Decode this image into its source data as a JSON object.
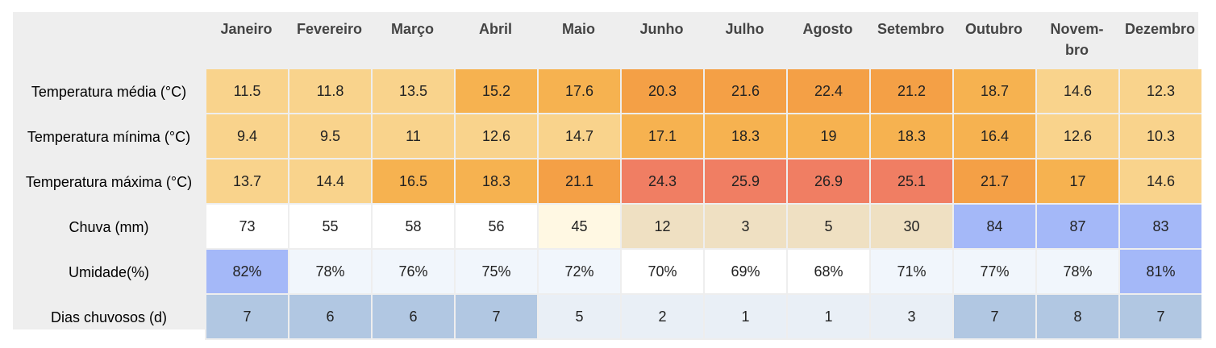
{
  "months": [
    "Janeiro",
    "Fevereiro",
    "Março",
    "Abril",
    "Maio",
    "Junho",
    "Julho",
    "Agosto",
    "Setembro",
    "Outubro",
    "Novem-\nbro",
    "Dezembro"
  ],
  "rows": [
    {
      "label": "Temperatura média (°C)",
      "values": [
        "11.5",
        "11.8",
        "13.5",
        "15.2",
        "17.6",
        "20.3",
        "21.6",
        "22.4",
        "21.2",
        "18.7",
        "14.6",
        "12.3"
      ],
      "colors": [
        "#f9d38c",
        "#f9d38c",
        "#f9d38c",
        "#f6b250",
        "#f6b250",
        "#f4a046",
        "#f4a046",
        "#f4a046",
        "#f4a046",
        "#f6b250",
        "#f9d38c",
        "#f9d38c"
      ]
    },
    {
      "label": "Temperatura mínima (°C)",
      "values": [
        "9.4",
        "9.5",
        "11",
        "12.6",
        "14.7",
        "17.1",
        "18.3",
        "19",
        "18.3",
        "16.4",
        "12.6",
        "10.3"
      ],
      "colors": [
        "#f9d38c",
        "#f9d38c",
        "#f9d38c",
        "#f9d38c",
        "#f9d38c",
        "#f6b250",
        "#f6b250",
        "#f6b250",
        "#f6b250",
        "#f6b250",
        "#f9d38c",
        "#f9d38c"
      ]
    },
    {
      "label": "Temperatura máxima (°C)",
      "values": [
        "13.7",
        "14.4",
        "16.5",
        "18.3",
        "21.1",
        "24.3",
        "25.9",
        "26.9",
        "25.1",
        "21.7",
        "17",
        "14.6"
      ],
      "colors": [
        "#f9d38c",
        "#f9d38c",
        "#f6b250",
        "#f6b250",
        "#f4a046",
        "#f07e63",
        "#f07e63",
        "#f07e63",
        "#f07e63",
        "#f4a046",
        "#f6b250",
        "#f9d38c"
      ]
    },
    {
      "label": "Chuva (mm)",
      "values": [
        "73",
        "55",
        "58",
        "56",
        "45",
        "12",
        "3",
        "5",
        "30",
        "84",
        "87",
        "83"
      ],
      "colors": [
        "#ffffff",
        "#ffffff",
        "#ffffff",
        "#ffffff",
        "#fff8e3",
        "#efe0c2",
        "#efe0c2",
        "#efe0c2",
        "#efe0c2",
        "#a4b8f8",
        "#a4b8f8",
        "#a4b8f8"
      ]
    },
    {
      "label": "Umidade(%)",
      "values": [
        "82%",
        "78%",
        "76%",
        "75%",
        "72%",
        "70%",
        "69%",
        "68%",
        "71%",
        "77%",
        "78%",
        "81%"
      ],
      "colors": [
        "#a4b8f8",
        "#f1f6fc",
        "#f1f6fc",
        "#f1f6fc",
        "#f1f6fc",
        "#ffffff",
        "#ffffff",
        "#ffffff",
        "#f1f6fc",
        "#f1f6fc",
        "#f1f6fc",
        "#a4b8f8"
      ]
    },
    {
      "label": "Dias chuvosos (d)",
      "values": [
        "7",
        "6",
        "6",
        "7",
        "5",
        "2",
        "1",
        "1",
        "3",
        "7",
        "8",
        "7"
      ],
      "colors": [
        "#b1c7e2",
        "#b1c7e2",
        "#b1c7e2",
        "#b1c7e2",
        "#e9eff6",
        "#e9eff6",
        "#e9eff6",
        "#e9eff6",
        "#e9eff6",
        "#b1c7e2",
        "#b1c7e2",
        "#b1c7e2"
      ]
    }
  ]
}
